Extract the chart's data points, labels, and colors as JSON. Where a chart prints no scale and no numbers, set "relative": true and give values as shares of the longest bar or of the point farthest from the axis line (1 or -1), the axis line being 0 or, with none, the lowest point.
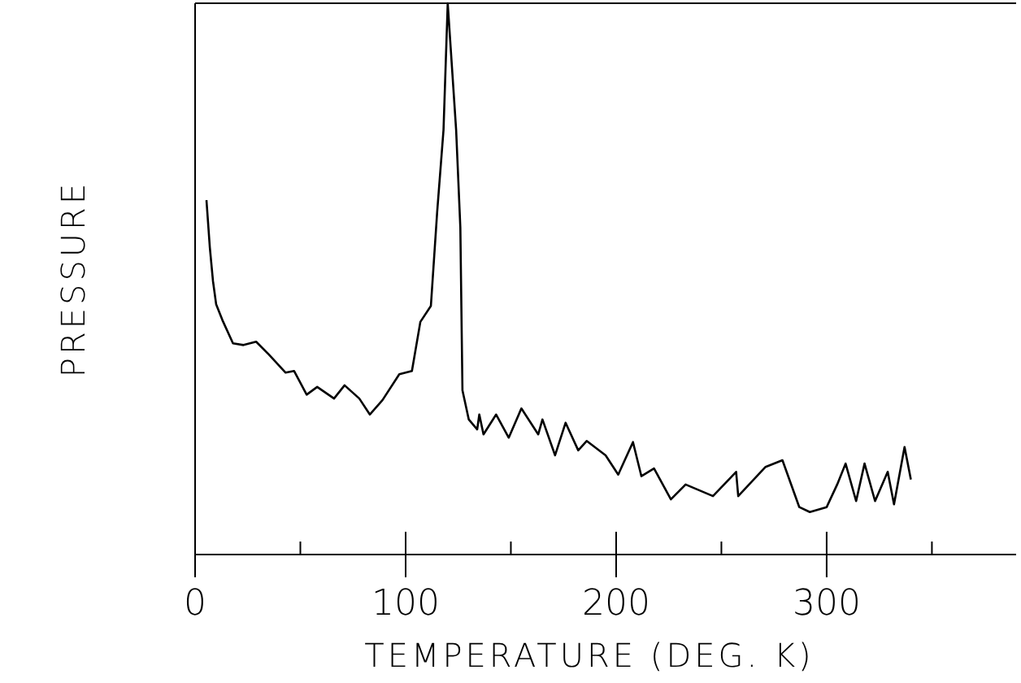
{
  "chart_data": {
    "type": "line",
    "relative": true,
    "xlabel": "TEMPERATURE (DEG. K)",
    "ylabel": "PRESSURE",
    "xlim": [
      0,
      390
    ],
    "xticks": [
      0,
      {
        "value": 50,
        "label": null
      },
      100,
      {
        "value": 150,
        "label": null
      },
      200,
      {
        "value": 250,
        "label": null
      },
      300,
      {
        "value": 350,
        "label": null
      }
    ],
    "line_style": "solid",
    "series": [
      {
        "color": "#000000",
        "x": [
          5.4,
          7,
          8.5,
          10,
          13,
          18,
          23,
          29,
          35,
          43,
          47,
          53,
          58,
          66,
          71,
          78,
          83,
          89,
          97,
          103,
          107,
          112,
          115,
          118,
          120,
          124,
          126,
          127,
          130,
          134,
          135,
          137,
          143,
          149,
          155,
          163,
          165,
          171,
          176,
          182,
          186,
          195,
          201,
          208,
          212,
          218,
          226,
          233,
          246,
          257,
          258,
          271,
          279,
          287,
          292,
          300,
          305,
          309,
          314,
          318,
          323,
          329,
          332,
          337,
          340
        ],
        "values": [
          0.643,
          0.557,
          0.496,
          0.454,
          0.425,
          0.383,
          0.38,
          0.386,
          0.363,
          0.33,
          0.333,
          0.29,
          0.304,
          0.283,
          0.307,
          0.283,
          0.254,
          0.28,
          0.327,
          0.333,
          0.422,
          0.451,
          0.622,
          0.77,
          1.0,
          0.77,
          0.593,
          0.298,
          0.245,
          0.227,
          0.254,
          0.218,
          0.254,
          0.212,
          0.265,
          0.218,
          0.245,
          0.18,
          0.239,
          0.189,
          0.206,
          0.18,
          0.145,
          0.204,
          0.142,
          0.156,
          0.1,
          0.127,
          0.106,
          0.15,
          0.106,
          0.159,
          0.171,
          0.086,
          0.077,
          0.086,
          0.127,
          0.165,
          0.097,
          0.165,
          0.097,
          0.15,
          0.091,
          0.195,
          0.136
        ]
      }
    ]
  }
}
